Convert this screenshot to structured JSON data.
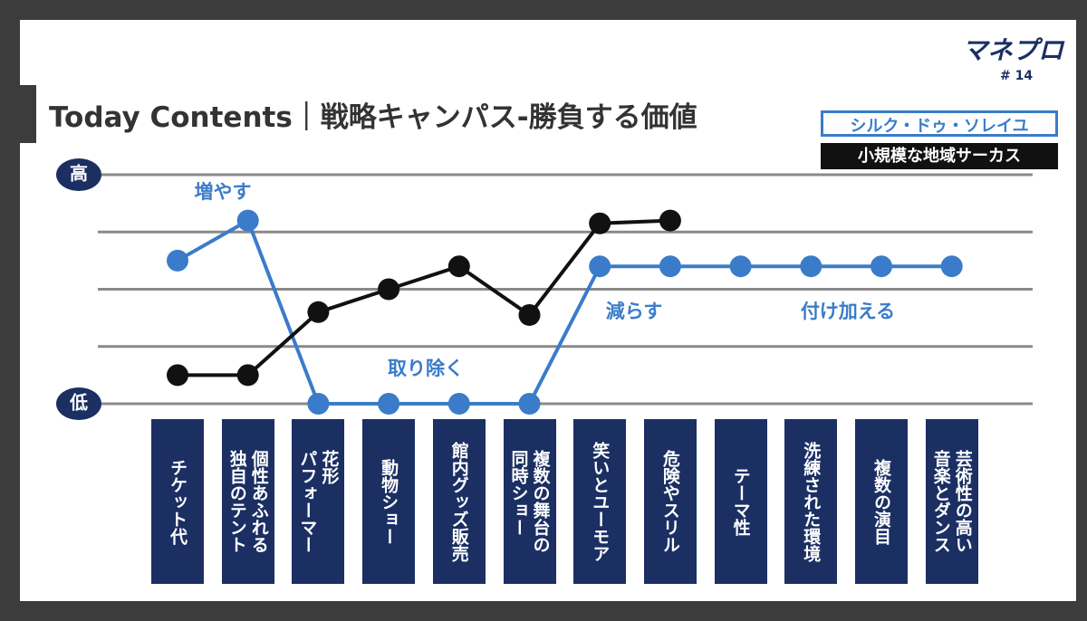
{
  "header": {
    "title": "Today Contents｜戦略キャンパス-勝負する価値",
    "logo": "マネプロ",
    "issue": "# 14"
  },
  "chart_data": {
    "type": "line",
    "categories": [
      "チケット代",
      "個性あふれる\n独自のテント",
      "花形\nパフォーマー",
      "動物ショー",
      "館内グッズ販売",
      "複数の舞台の\n同時ショー",
      "笑いとユーモア",
      "危険やスリル",
      "テーマ性",
      "洗練された環境",
      "複数の演目",
      "芸術性の高い\n音楽とダンス"
    ],
    "series": [
      {
        "name": "シルク・ドゥ・ソレイユ",
        "color": "#3a7cc9",
        "values": [
          2.5,
          3.2,
          0,
          0,
          0,
          0,
          2.4,
          2.4,
          2.4,
          2.4,
          2.4,
          2.4
        ]
      },
      {
        "name": "小規模な地域サーカス",
        "color": "#111111",
        "values": [
          0.5,
          0.5,
          1.6,
          2.0,
          2.4,
          1.55,
          3.15,
          3.2,
          null,
          null,
          null,
          null
        ]
      }
    ],
    "ylim": [
      0,
      4
    ],
    "yticks": [
      {
        "value": 0,
        "label": "低"
      },
      {
        "value": 4,
        "label": "高"
      }
    ],
    "ygrid": [
      1,
      2,
      3
    ],
    "annotations": [
      "増やす",
      "取り除く",
      "減らす",
      "付け加える"
    ]
  }
}
